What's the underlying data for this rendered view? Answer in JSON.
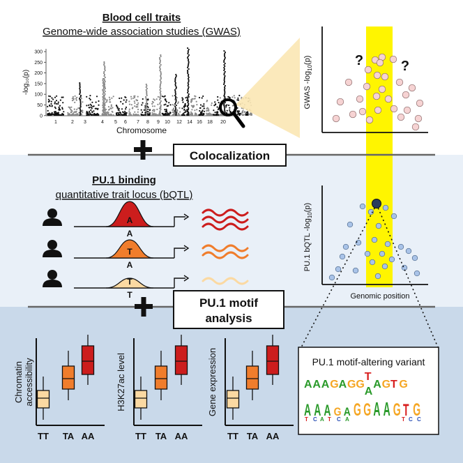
{
  "gwas_section": {
    "title": "Blood cell traits",
    "subtitle": "Genome-wide association studies (GWAS)",
    "manhattan_xlabel": "Chromosome",
    "manhattan_ylabel": "-log₁₀(p)",
    "manhattan_yticks": [
      "300",
      "250",
      "200",
      "150",
      "100",
      "50",
      "0"
    ],
    "manhattan_xticks": [
      "1",
      "2",
      "3",
      "4",
      "5",
      "6",
      "7",
      "8",
      "9",
      "10",
      "12",
      "14",
      "16",
      "18",
      "20"
    ]
  },
  "colocalization_label": "Colocalization",
  "bqtl_section": {
    "title": "PU.1 binding",
    "subtitle": "quantitative trait locus (bQTL)",
    "alleles": [
      {
        "top": "A",
        "bottom": "A",
        "peak_color": "#cc1d1d",
        "wave_color": "#cc1d1d",
        "wave_count": 3
      },
      {
        "top": "T",
        "bottom": "A",
        "peak_color": "#f07d2c",
        "wave_color": "#f07d2c",
        "wave_count": 2
      },
      {
        "top": "T",
        "bottom": "T",
        "peak_color": "#fbd9a2",
        "wave_color": "#fbd9a2",
        "wave_count": 1
      }
    ]
  },
  "motif_label_line1": "PU.1 motif",
  "motif_label_line2": "analysis",
  "gwas_plot": {
    "ylabel_prefix": "GWAS -log",
    "ylabel_sub": "10",
    "ylabel_suffix": "(p)",
    "question": "?"
  },
  "bqtl_plot": {
    "ylabel_prefix": "PU.1 bQTL -log",
    "ylabel_sub": "10",
    "ylabel_suffix": "(p)",
    "xlabel": "Genomic position"
  },
  "boxplots": [
    {
      "ylabel_lines": [
        "Chromatin",
        "accessibility"
      ]
    },
    {
      "ylabel_lines": [
        "H3K27ac level"
      ]
    },
    {
      "ylabel_lines": [
        "Gene expression"
      ]
    }
  ],
  "genotypes": [
    "TT",
    "TA",
    "AA"
  ],
  "genotype_colors": [
    "#fbd9a2",
    "#f07d2c",
    "#cc1d1d"
  ],
  "variant_box": {
    "title": "PU.1 motif-altering variant",
    "sequence_left": "AAAGAGG",
    "sequence_alt_top": "T",
    "sequence_alt_bottom": "A",
    "sequence_right": "AGTG",
    "logo_letters": "AAAGAGGAAGTG"
  },
  "colors": {
    "A": "#2a9a2a",
    "G": "#f5a623",
    "T": "#d81e1e",
    "C": "#2a4fb5",
    "highlight": "#fff500"
  }
}
